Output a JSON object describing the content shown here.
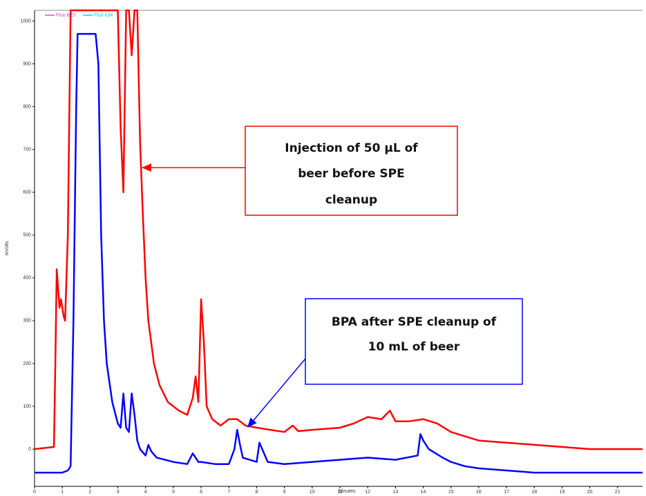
{
  "chart_data": {
    "type": "line",
    "x_label": "Minutes",
    "y_label": "mVolts",
    "xlim": [
      0,
      21.9
    ],
    "ylim": [
      -87,
      1025
    ],
    "xticks": [
      0,
      1,
      2,
      3,
      4,
      5,
      6,
      7,
      8,
      9,
      10,
      11,
      12,
      13,
      14,
      15,
      16,
      17,
      18,
      19,
      20,
      21
    ],
    "yticks": [
      0,
      100,
      200,
      300,
      400,
      500,
      600,
      700,
      800,
      900,
      1000
    ],
    "series": [
      {
        "name": "Fluo B23",
        "color": "#ff0000",
        "legend_color": "#e040e0",
        "x": [
          0,
          0.7,
          0.75,
          0.8,
          0.9,
          0.95,
          1.05,
          1.1,
          1.2,
          1.3,
          2.0,
          3.0,
          3.1,
          3.2,
          3.3,
          3.4,
          3.5,
          3.6,
          3.7,
          3.8,
          3.9,
          4.0,
          4.1,
          4.2,
          4.3,
          4.5,
          4.8,
          5.0,
          5.2,
          5.5,
          5.7,
          5.8,
          5.9,
          6.0,
          6.1,
          6.2,
          6.4,
          6.7,
          7.0,
          7.3,
          7.6,
          8.0,
          8.5,
          9.0,
          9.3,
          9.5,
          10.0,
          11.0,
          11.5,
          12.0,
          12.5,
          12.8,
          13.0,
          13.5,
          14.0,
          14.5,
          15.0,
          15.5,
          16.0,
          17.0,
          18.0,
          19.0,
          20.0,
          21.0,
          21.9
        ],
        "values": [
          0,
          5,
          200,
          420,
          330,
          350,
          310,
          300,
          500,
          1025,
          1025,
          1025,
          750,
          600,
          1025,
          1025,
          920,
          1025,
          1025,
          720,
          550,
          400,
          300,
          250,
          200,
          150,
          110,
          100,
          90,
          80,
          120,
          170,
          110,
          350,
          250,
          100,
          70,
          55,
          70,
          70,
          55,
          50,
          45,
          40,
          55,
          42,
          45,
          50,
          60,
          75,
          70,
          90,
          65,
          65,
          70,
          60,
          40,
          30,
          20,
          15,
          10,
          5,
          0,
          0,
          0
        ],
        "line_width": 2.5
      },
      {
        "name": "Fluo e34",
        "color": "#0000ff",
        "legend_color": "#00d0e0",
        "x": [
          0,
          1.0,
          1.2,
          1.3,
          1.4,
          1.5,
          1.55,
          2.2,
          2.3,
          2.4,
          2.5,
          2.6,
          2.8,
          3.0,
          3.1,
          3.2,
          3.3,
          3.4,
          3.5,
          3.6,
          3.7,
          3.8,
          4.0,
          4.1,
          4.2,
          4.4,
          5.0,
          5.5,
          5.7,
          5.9,
          6.0,
          6.5,
          7.0,
          7.2,
          7.3,
          7.4,
          7.5,
          8.0,
          8.1,
          8.2,
          8.4,
          9.0,
          10.0,
          11.0,
          12.0,
          13.0,
          13.8,
          13.9,
          14.0,
          14.2,
          14.7,
          15.0,
          15.5,
          16.0,
          17.0,
          18.0,
          19.0,
          20.0,
          21.0,
          21.9
        ],
        "values": [
          -55,
          -55,
          -50,
          -40,
          300,
          800,
          970,
          970,
          900,
          500,
          300,
          200,
          110,
          60,
          50,
          130,
          50,
          40,
          130,
          80,
          20,
          0,
          -15,
          10,
          -5,
          -20,
          -30,
          -35,
          -10,
          -30,
          -30,
          -35,
          -35,
          0,
          45,
          10,
          -20,
          -30,
          15,
          0,
          -30,
          -35,
          -30,
          -25,
          -20,
          -25,
          -15,
          35,
          20,
          0,
          -20,
          -30,
          -40,
          -45,
          -50,
          -55,
          -55,
          -55,
          -55,
          -55
        ],
        "line_width": 2.5
      }
    ],
    "annotations": [
      {
        "lines": [
          "Injection of 50 µL of",
          "beer before SPE",
          "cleanup"
        ],
        "color": "#ff0000"
      },
      {
        "lines": [
          "BPA after SPE cleanup of",
          "10 mL of beer"
        ],
        "color": "#0000ff"
      }
    ]
  }
}
